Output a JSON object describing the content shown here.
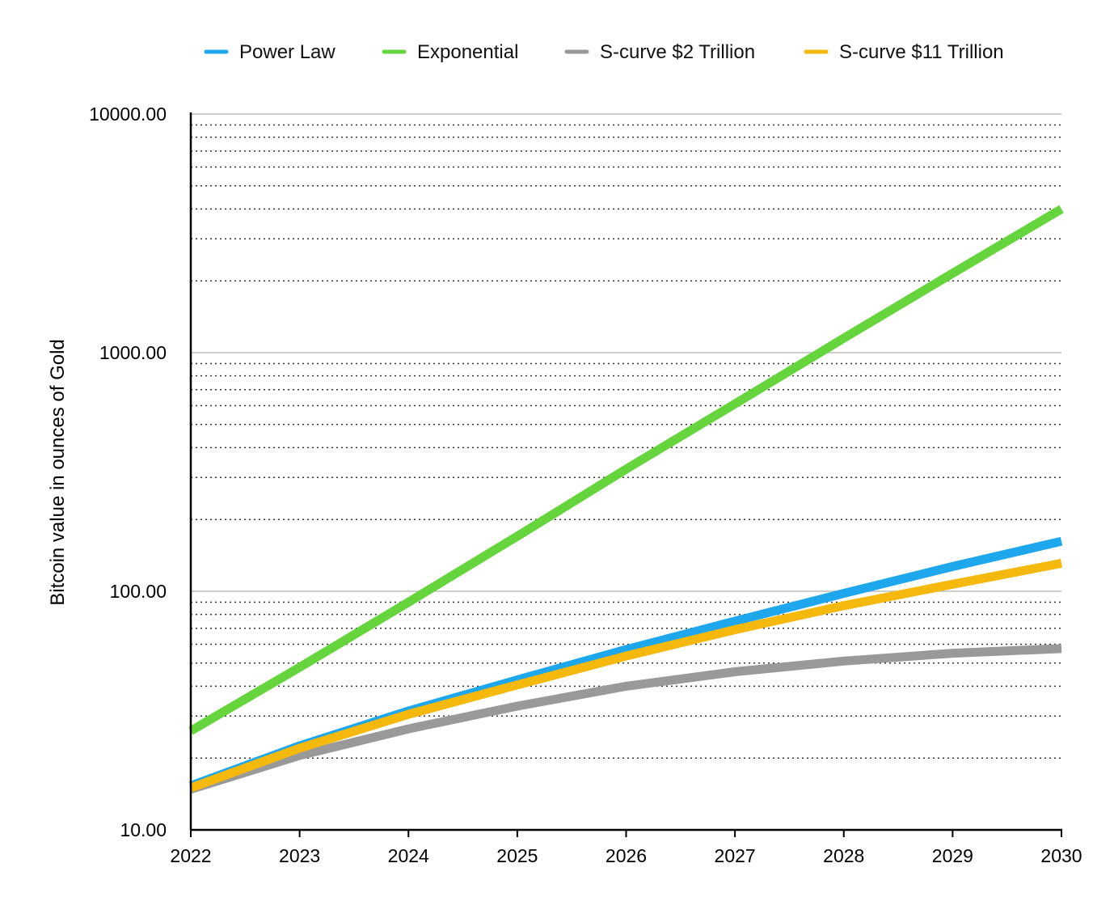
{
  "chart_data": {
    "type": "line",
    "title": "",
    "xlabel": "",
    "ylabel": "Bitcoin value in ounces of Gold",
    "yscale": "log",
    "ylim": [
      10,
      10000
    ],
    "y_ticks": [
      "10.00",
      "100.00",
      "1000.00",
      "10000.00"
    ],
    "x": [
      "2022",
      "2023",
      "2024",
      "2025",
      "2026",
      "2027",
      "2028",
      "2029",
      "2030"
    ],
    "grid": "major solid, minor dotted",
    "legend_position": "top",
    "series": [
      {
        "name": "Power Law",
        "color": "#1EA7EC",
        "values": [
          15.3,
          22.5,
          31.5,
          42.5,
          57,
          75,
          98,
          127,
          162
        ]
      },
      {
        "name": "Exponential",
        "color": "#66D43C",
        "values": [
          26,
          48,
          90,
          170,
          325,
          610,
          1150,
          2150,
          4000
        ]
      },
      {
        "name": "S-curve $2 Trillion",
        "color": "#999999",
        "values": [
          14.8,
          20.5,
          26.5,
          33,
          40,
          46,
          51,
          55,
          57.5
        ]
      },
      {
        "name": "S-curve $11 Trillion",
        "color": "#F5B90D",
        "values": [
          15,
          22,
          30.5,
          40.5,
          53.5,
          69,
          87,
          107,
          131
        ]
      }
    ]
  }
}
